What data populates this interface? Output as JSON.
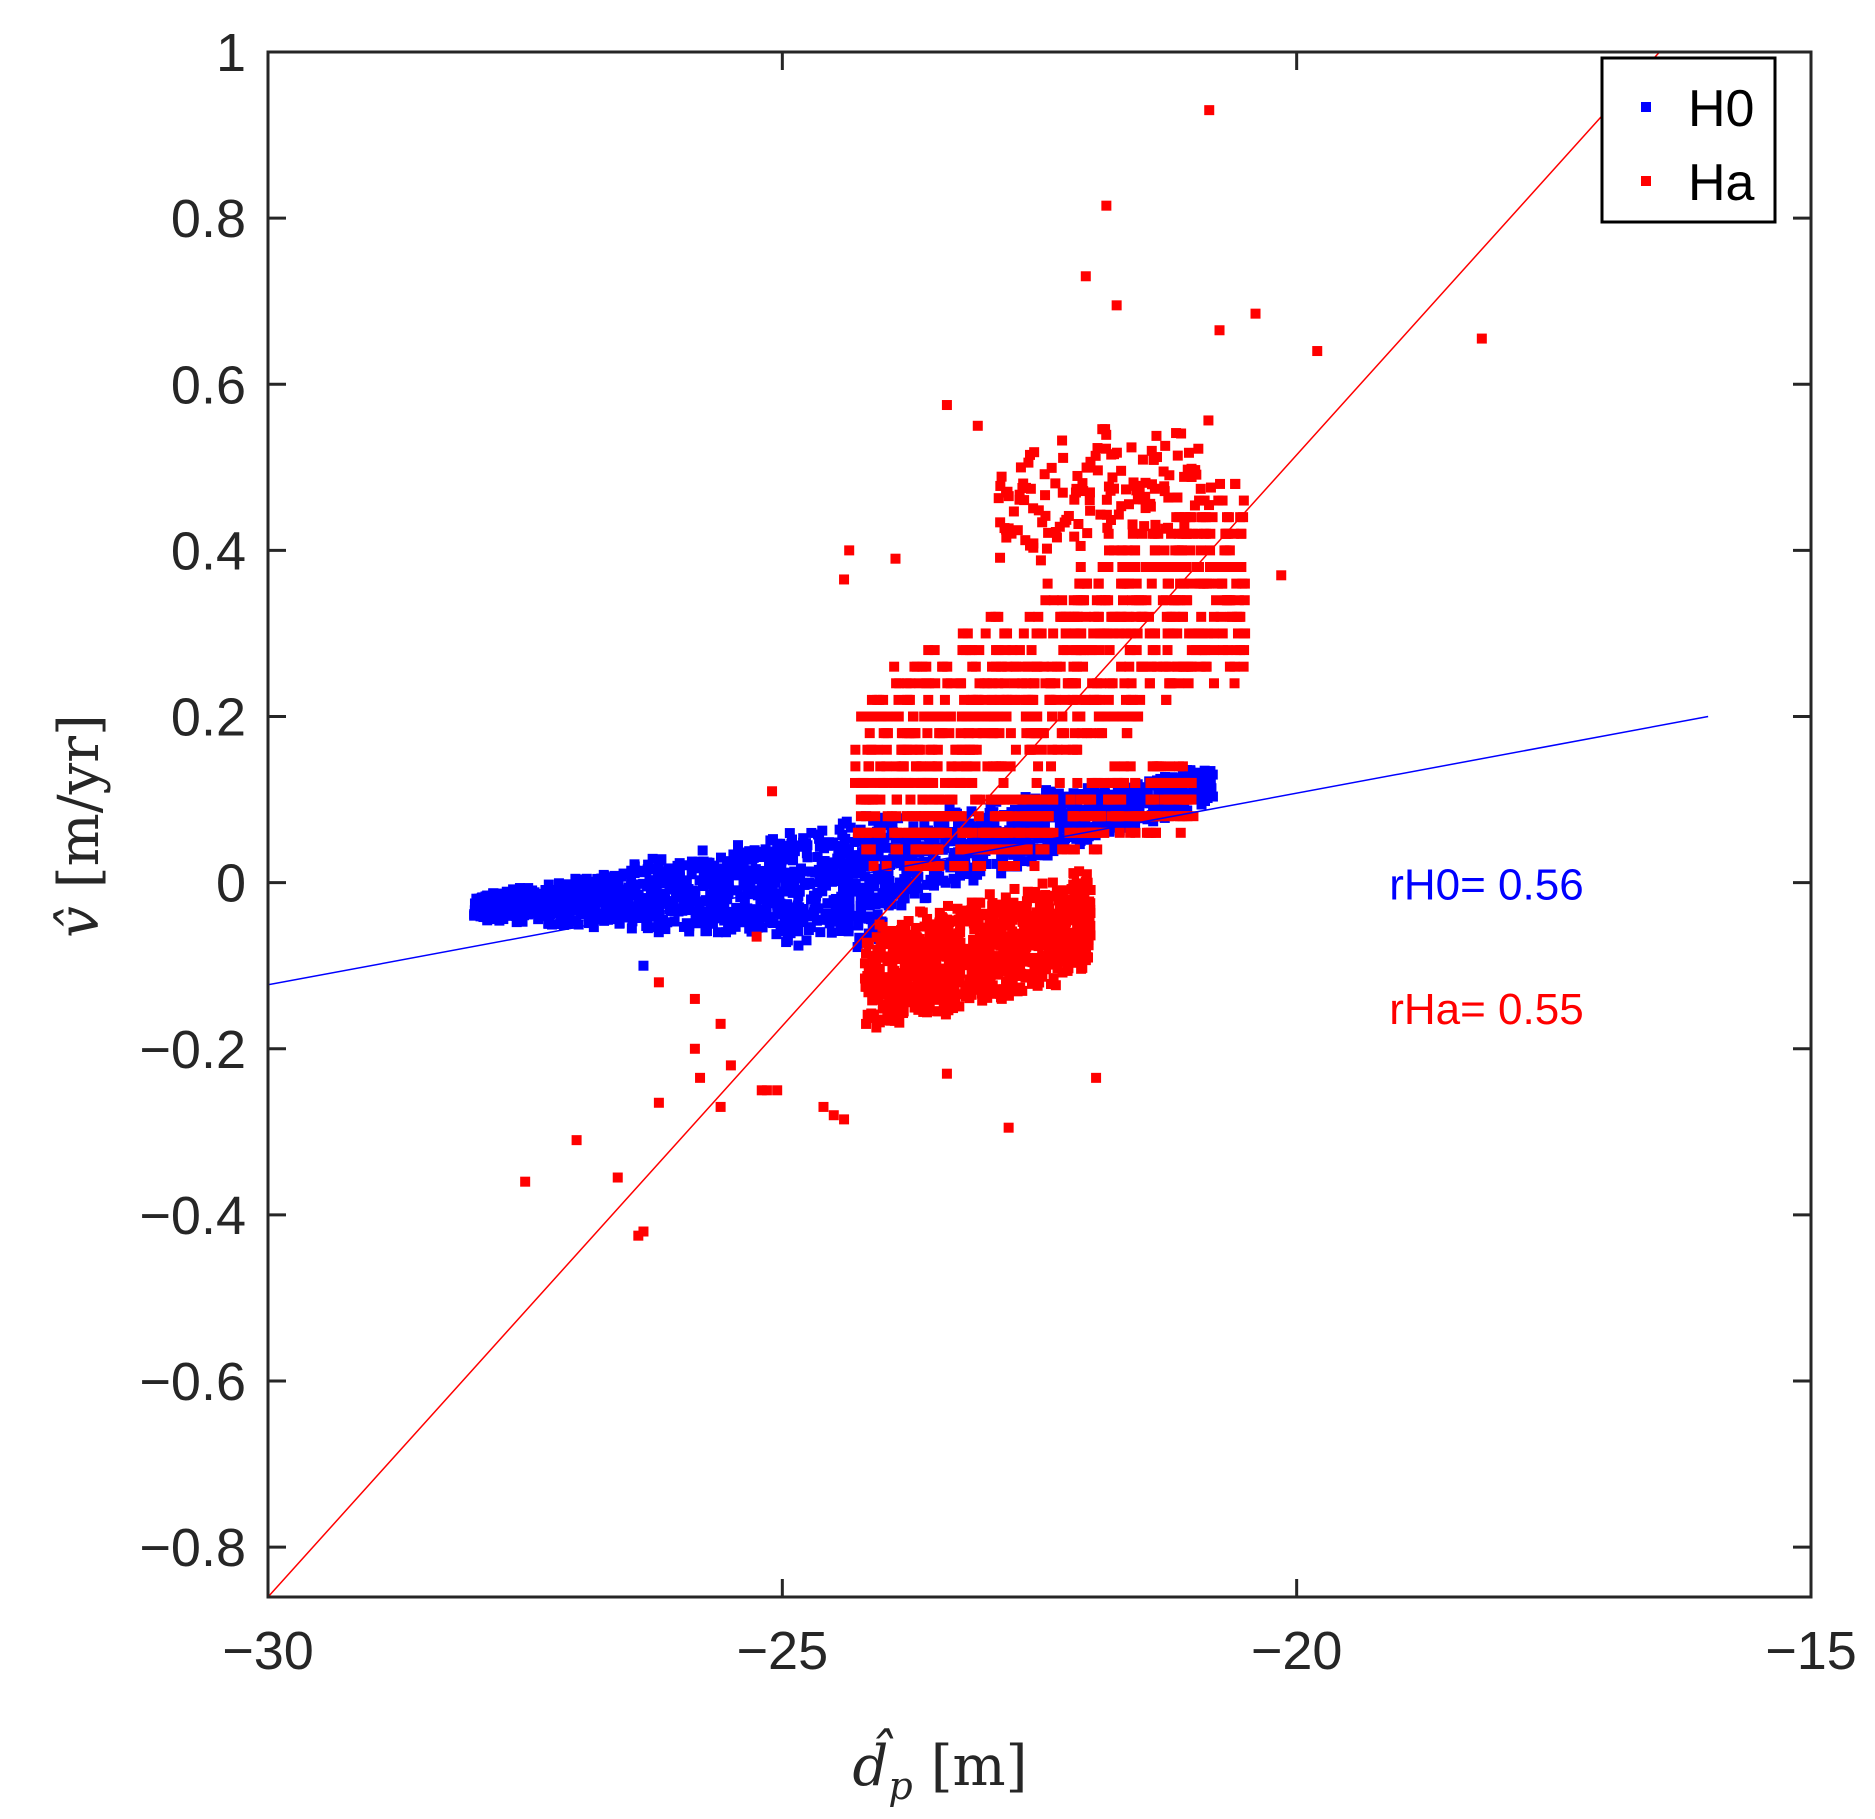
{
  "chart_data": {
    "type": "scatter",
    "xlim": [
      -30,
      -15
    ],
    "ylim": [
      -0.86,
      1.0
    ],
    "xticks": [
      -30,
      -25,
      -20,
      -15
    ],
    "yticks": [
      -0.8,
      -0.6,
      -0.4,
      -0.2,
      0,
      0.2,
      0.4,
      0.6,
      0.8,
      1
    ],
    "xtick_labels": [
      "−30",
      "−25",
      "−20",
      "−15"
    ],
    "ytick_labels": [
      "−0.8",
      "−0.6",
      "−0.4",
      "−0.2",
      "0",
      "0.2",
      "0.4",
      "0.6",
      "0.8",
      "1"
    ],
    "xlabel": {
      "symbol": "d̂",
      "subscript": "p",
      "unit": "[m]"
    },
    "ylabel": {
      "symbol": "v̂",
      "unit": "[m/yr]"
    },
    "grid": false,
    "legend_position": "top-right",
    "series": [
      {
        "name": "H0",
        "color": "#0000ff",
        "marker": "square",
        "clusters": [
          {
            "x_range": [
              -28.0,
              -24.0
            ],
            "v_center_at_min": -0.03,
            "v_center_at_max": 0.0,
            "half_width_at_min": 0.015,
            "half_width_at_max": 0.09,
            "count": 1100
          },
          {
            "x_range": [
              -24.0,
              -20.8
            ],
            "v_center_at_min": 0.02,
            "v_center_at_max": 0.12,
            "half_width_at_min": 0.06,
            "half_width_at_max": 0.025,
            "count": 700
          }
        ],
        "points": [
          {
            "x": -26.35,
            "y": -0.1
          }
        ],
        "fit_line": {
          "x": [
            -30,
            -16
          ],
          "y": [
            -0.123,
            0.2
          ]
        }
      },
      {
        "name": "Ha",
        "color": "#ff0000",
        "marker": "square",
        "clusters": [
          {
            "x_range": [
              -24.3,
              -20.5
            ],
            "v_center_at_min": 0.12,
            "v_center_at_max": 0.38,
            "half_width_at_min": 0.13,
            "half_width_at_max": 0.13,
            "count": 700,
            "banded": true
          },
          {
            "x_range": [
              -24.2,
              -22.0
            ],
            "v_center_at_min": -0.12,
            "v_center_at_max": -0.05,
            "half_width_at_min": 0.07,
            "half_width_at_max": 0.07,
            "count": 900
          },
          {
            "x_range": [
              -23.8,
              -21.0
            ],
            "v_center_at_min": 0.04,
            "v_center_at_max": 0.11,
            "half_width_at_min": 0.05,
            "half_width_at_max": 0.05,
            "count": 300,
            "banded": true
          },
          {
            "x_range": [
              -22.9,
              -20.8
            ],
            "v_center_at_min": 0.45,
            "v_center_at_max": 0.5,
            "half_width_at_min": 0.08,
            "half_width_at_max": 0.08,
            "count": 140
          }
        ],
        "points": [
          {
            "x": -20.85,
            "y": 0.93
          },
          {
            "x": -21.85,
            "y": 0.815
          },
          {
            "x": -22.05,
            "y": 0.73
          },
          {
            "x": -21.75,
            "y": 0.695
          },
          {
            "x": -20.4,
            "y": 0.685
          },
          {
            "x": -20.75,
            "y": 0.665
          },
          {
            "x": -18.2,
            "y": 0.655
          },
          {
            "x": -19.8,
            "y": 0.64
          },
          {
            "x": -23.4,
            "y": 0.575
          },
          {
            "x": -23.1,
            "y": 0.55
          },
          {
            "x": -24.35,
            "y": 0.4
          },
          {
            "x": -23.9,
            "y": 0.39
          },
          {
            "x": -24.4,
            "y": 0.365
          },
          {
            "x": -20.15,
            "y": 0.37
          },
          {
            "x": -25.1,
            "y": 0.11
          },
          {
            "x": -25.25,
            "y": -0.065
          },
          {
            "x": -26.2,
            "y": -0.12
          },
          {
            "x": -25.85,
            "y": -0.14
          },
          {
            "x": -25.6,
            "y": -0.17
          },
          {
            "x": -25.85,
            "y": -0.2
          },
          {
            "x": -25.5,
            "y": -0.22
          },
          {
            "x": -25.8,
            "y": -0.235
          },
          {
            "x": -25.2,
            "y": -0.25
          },
          {
            "x": -25.05,
            "y": -0.25
          },
          {
            "x": -26.2,
            "y": -0.265
          },
          {
            "x": -25.6,
            "y": -0.27
          },
          {
            "x": -24.6,
            "y": -0.27
          },
          {
            "x": -24.5,
            "y": -0.28
          },
          {
            "x": -25.15,
            "y": -0.25
          },
          {
            "x": -22.8,
            "y": -0.295
          },
          {
            "x": -21.95,
            "y": -0.235
          },
          {
            "x": -27.0,
            "y": -0.31
          },
          {
            "x": -27.5,
            "y": -0.36
          },
          {
            "x": -26.6,
            "y": -0.355
          },
          {
            "x": -26.35,
            "y": -0.42
          },
          {
            "x": -26.4,
            "y": -0.425
          },
          {
            "x": -24.4,
            "y": -0.285
          },
          {
            "x": -23.4,
            "y": -0.23
          }
        ],
        "fit_line": {
          "x": [
            -30,
            -16
          ],
          "y": [
            -0.86,
            1.065
          ]
        }
      }
    ],
    "annotations": [
      {
        "text": "rH0= 0.56",
        "x": -19.1,
        "y": -0.02,
        "color": "#0000ff"
      },
      {
        "text": "rHa= 0.55",
        "x": -19.1,
        "y": -0.17,
        "color": "#ff0000"
      }
    ],
    "legend": [
      {
        "label": "H0",
        "color": "#0000ff"
      },
      {
        "label": "Ha",
        "color": "#ff0000"
      }
    ]
  }
}
